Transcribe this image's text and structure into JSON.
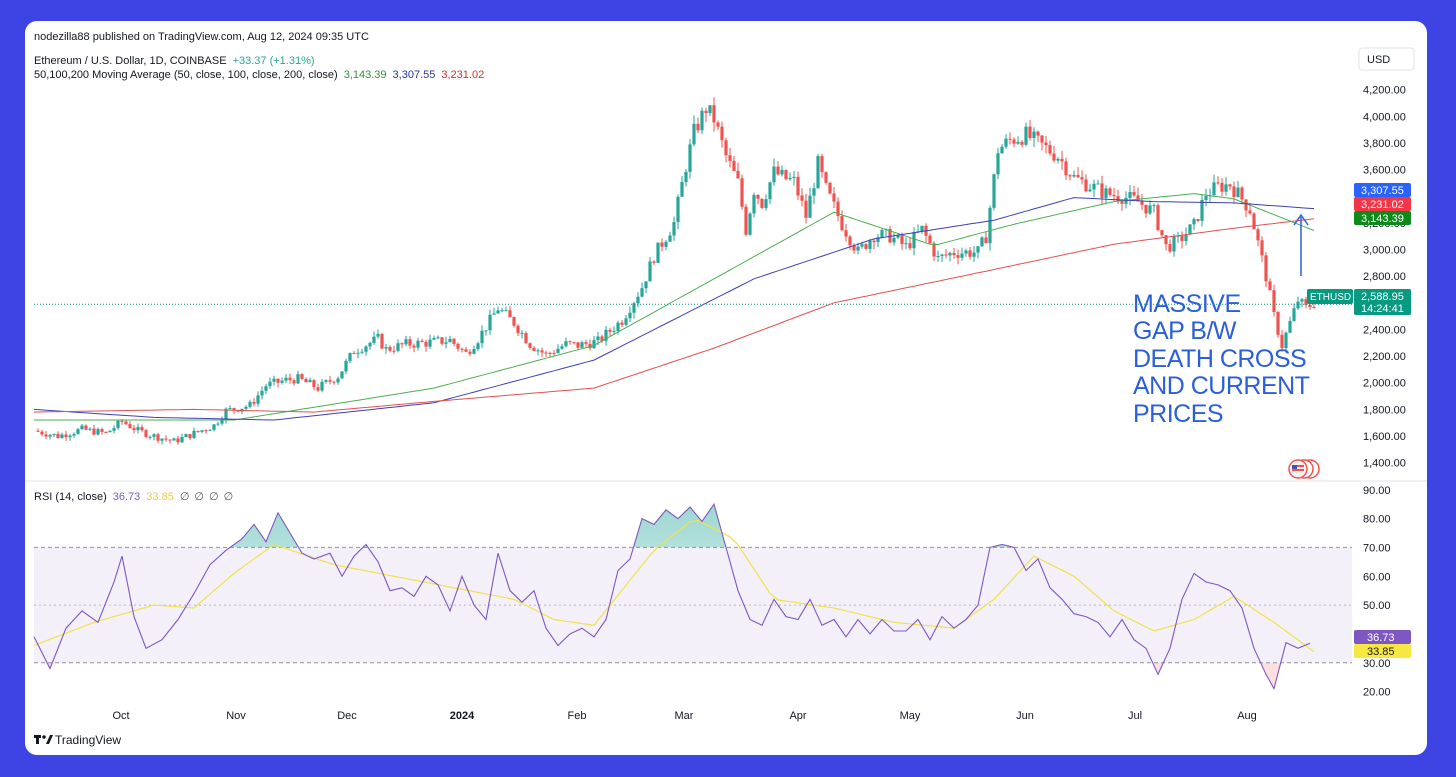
{
  "header": {
    "publisher": "nodezilla88 published on TradingView.com, Aug 12, 2024 09:35 UTC",
    "symbol": "Ethereum / U.S. Dollar, 1D, COINBASE",
    "change": "+33.37 (+1.31%)",
    "ma_label": "50,100,200 Moving Average (50, close, 100, close, 200, close)",
    "ma50_value": "3,143.39",
    "ma100_value": "3,307.55",
    "ma200_value": "3,231.02",
    "currency_button": "USD"
  },
  "annotation": {
    "lines": [
      "MASSIVE",
      "GAP B/W",
      "DEATH CROSS",
      "AND CURRENT",
      "PRICES"
    ]
  },
  "price_tags": {
    "ma100": "3,307.55",
    "ma200": "3,231.02",
    "ma50": "3,143.39",
    "symbol_tag": "ETHUSD",
    "last_price": "2,588.95",
    "countdown": "14:24:41"
  },
  "rsi_panel": {
    "label": "RSI (14, close)",
    "rsi_value": "36.73",
    "ma_value": "33.85",
    "extras": [
      "∅",
      "∅",
      "∅",
      "∅"
    ],
    "tag_rsi": "36.73",
    "tag_ma": "33.85"
  },
  "footer": {
    "brand": "TradingView"
  },
  "colors": {
    "up": "#26a69a",
    "down": "#ef5350",
    "ma50": "#4caf50",
    "ma100": "#3f3fb5",
    "ma200": "#e05252",
    "rsi": "#7e57c2",
    "rsi_ma": "#f2e14a",
    "annotation": "#2b5fd9",
    "background": "#3d44e3"
  },
  "chart_data": [
    {
      "type": "candlestick",
      "title": "Ethereum / U.S. Dollar, 1D, COINBASE",
      "y_ticks": [
        1400,
        1600,
        1800,
        2000,
        2200,
        2400,
        2600,
        2800,
        3000,
        3200,
        3400,
        3600,
        3800,
        4000,
        4200
      ],
      "y_tick_labels": [
        "1,400.00",
        "1,600.00",
        "1,800.00",
        "2,000.00",
        "2,200.00",
        "2,400.00",
        "2,600.00",
        "2,800.00",
        "3,000.00",
        "3,200.00",
        "3,400.00",
        "3,600.00",
        "3,800.00",
        "4,000.00",
        "4,200.00"
      ],
      "x_labels": [
        "Oct",
        "Nov",
        "Dec",
        "2024",
        "Feb",
        "Mar",
        "Apr",
        "May",
        "Jun",
        "Jul",
        "Aug"
      ],
      "ylim": [
        1300,
        4250
      ],
      "last_price": 2588.95,
      "close_path": [
        [
          0,
          1640
        ],
        [
          6,
          1600
        ],
        [
          12,
          1650
        ],
        [
          18,
          1620
        ],
        [
          22,
          1710
        ],
        [
          26,
          1640
        ],
        [
          30,
          1600
        ],
        [
          35,
          1560
        ],
        [
          40,
          1620
        ],
        [
          45,
          1680
        ],
        [
          48,
          1790
        ],
        [
          54,
          1830
        ],
        [
          58,
          1980
        ],
        [
          63,
          2020
        ],
        [
          66,
          2030
        ],
        [
          71,
          1960
        ],
        [
          76,
          2050
        ],
        [
          80,
          2240
        ],
        [
          86,
          2330
        ],
        [
          88,
          2250
        ],
        [
          93,
          2290
        ],
        [
          98,
          2300
        ],
        [
          104,
          2320
        ],
        [
          108,
          2220
        ],
        [
          111,
          2330
        ],
        [
          116,
          2560
        ],
        [
          120,
          2450
        ],
        [
          124,
          2290
        ],
        [
          128,
          2210
        ],
        [
          133,
          2290
        ],
        [
          136,
          2280
        ],
        [
          141,
          2310
        ],
        [
          147,
          2470
        ],
        [
          152,
          2720
        ],
        [
          155,
          2950
        ],
        [
          160,
          3200
        ],
        [
          163,
          3630
        ],
        [
          165,
          3880
        ],
        [
          168,
          4060
        ],
        [
          170,
          3980
        ],
        [
          173,
          3700
        ],
        [
          176,
          3500
        ],
        [
          178,
          3150
        ],
        [
          180,
          3450
        ],
        [
          182,
          3350
        ],
        [
          185,
          3580
        ],
        [
          188,
          3530
        ],
        [
          190,
          3510
        ],
        [
          193,
          3250
        ],
        [
          196,
          3640
        ],
        [
          198,
          3450
        ],
        [
          202,
          3190
        ],
        [
          206,
          2980
        ],
        [
          210,
          3110
        ],
        [
          214,
          3100
        ],
        [
          218,
          3020
        ],
        [
          222,
          3150
        ],
        [
          226,
          2930
        ],
        [
          230,
          2980
        ],
        [
          236,
          2980
        ],
        [
          238,
          3100
        ],
        [
          241,
          3750
        ],
        [
          244,
          3820
        ],
        [
          248,
          3860
        ],
        [
          252,
          3780
        ],
        [
          256,
          3700
        ],
        [
          260,
          3540
        ],
        [
          264,
          3480
        ],
        [
          268,
          3420
        ],
        [
          272,
          3400
        ],
        [
          276,
          3360
        ],
        [
          280,
          3280
        ],
        [
          283,
          3020
        ],
        [
          286,
          3060
        ],
        [
          290,
          3180
        ],
        [
          293,
          3420
        ],
        [
          296,
          3470
        ],
        [
          299,
          3490
        ],
        [
          302,
          3380
        ],
        [
          304,
          3300
        ],
        [
          306,
          3050
        ],
        [
          308,
          2800
        ],
        [
          310,
          2500
        ],
        [
          312,
          2280
        ],
        [
          314,
          2450
        ],
        [
          316,
          2620
        ],
        [
          318,
          2560
        ],
        [
          320,
          2600
        ]
      ],
      "series": [
        {
          "name": "50",
          "last": 3143.39,
          "values": [
            [
              0,
              1720
            ],
            [
              50,
              1720
            ],
            [
              100,
              1960
            ],
            [
              140,
              2280
            ],
            [
              170,
              2780
            ],
            [
              200,
              3280
            ],
            [
              225,
              3030
            ],
            [
              245,
              3190
            ],
            [
              270,
              3360
            ],
            [
              290,
              3420
            ],
            [
              300,
              3380
            ],
            [
              320,
              3143
            ]
          ]
        },
        {
          "name": "100",
          "last": 3307.55,
          "values": [
            [
              0,
              1800
            ],
            [
              30,
              1740
            ],
            [
              60,
              1720
            ],
            [
              100,
              1850
            ],
            [
              140,
              2170
            ],
            [
              180,
              2780
            ],
            [
              210,
              3080
            ],
            [
              240,
              3220
            ],
            [
              260,
              3390
            ],
            [
              280,
              3360
            ],
            [
              300,
              3350
            ],
            [
              320,
              3307
            ]
          ]
        },
        {
          "name": "200",
          "last": 3231.02,
          "values": [
            [
              0,
              1780
            ],
            [
              40,
              1800
            ],
            [
              70,
              1780
            ],
            [
              100,
              1860
            ],
            [
              140,
              1960
            ],
            [
              170,
              2260
            ],
            [
              200,
              2600
            ],
            [
              240,
              2850
            ],
            [
              270,
              3040
            ],
            [
              300,
              3160
            ],
            [
              320,
              3231
            ]
          ]
        }
      ]
    },
    {
      "type": "line",
      "title": "RSI (14, close)",
      "y_ticks": [
        20,
        30,
        40,
        50,
        60,
        70,
        80,
        90
      ],
      "y_tick_labels": [
        "20.00",
        "30.00",
        "40.00",
        "50.00",
        "60.00",
        "70.00",
        "80.00",
        "90.00"
      ],
      "ylim": [
        15,
        92
      ],
      "overbought": 70,
      "middle": 50,
      "oversold": 30,
      "series": [
        {
          "name": "RSI",
          "last": 36.73,
          "values": [
            [
              0,
              39
            ],
            [
              4,
              28
            ],
            [
              8,
              42
            ],
            [
              12,
              48
            ],
            [
              16,
              44
            ],
            [
              20,
              58
            ],
            [
              22,
              67
            ],
            [
              25,
              46
            ],
            [
              28,
              35
            ],
            [
              32,
              38
            ],
            [
              36,
              45
            ],
            [
              40,
              54
            ],
            [
              44,
              64
            ],
            [
              48,
              69
            ],
            [
              52,
              73
            ],
            [
              55,
              78
            ],
            [
              58,
              72
            ],
            [
              61,
              82
            ],
            [
              64,
              75
            ],
            [
              67,
              68
            ],
            [
              70,
              66
            ],
            [
              74,
              68
            ],
            [
              77,
              60
            ],
            [
              80,
              67
            ],
            [
              83,
              71
            ],
            [
              86,
              65
            ],
            [
              89,
              55
            ],
            [
              92,
              56
            ],
            [
              95,
              53
            ],
            [
              98,
              60
            ],
            [
              101,
              57
            ],
            [
              104,
              48
            ],
            [
              107,
              60
            ],
            [
              110,
              50
            ],
            [
              113,
              45
            ],
            [
              116,
              68
            ],
            [
              119,
              55
            ],
            [
              122,
              51
            ],
            [
              125,
              55
            ],
            [
              128,
              42
            ],
            [
              131,
              36
            ],
            [
              134,
              40
            ],
            [
              137,
              42
            ],
            [
              140,
              39
            ],
            [
              143,
              45
            ],
            [
              146,
              62
            ],
            [
              149,
              66
            ],
            [
              152,
              80
            ],
            [
              155,
              78
            ],
            [
              158,
              83
            ],
            [
              161,
              80
            ],
            [
              164,
              84
            ],
            [
              167,
              79
            ],
            [
              170,
              85
            ],
            [
              173,
              70
            ],
            [
              176,
              55
            ],
            [
              179,
              45
            ],
            [
              182,
              43
            ],
            [
              185,
              52
            ],
            [
              188,
              46
            ],
            [
              191,
              45
            ],
            [
              194,
              52
            ],
            [
              197,
              43
            ],
            [
              200,
              45
            ],
            [
              203,
              39
            ],
            [
              206,
              45
            ],
            [
              209,
              40
            ],
            [
              212,
              45
            ],
            [
              215,
              41
            ],
            [
              218,
              41
            ],
            [
              221,
              45
            ],
            [
              224,
              38
            ],
            [
              227,
              46
            ],
            [
              230,
              42
            ],
            [
              233,
              45
            ],
            [
              236,
              50
            ],
            [
              239,
              70
            ],
            [
              242,
              71
            ],
            [
              245,
              70
            ],
            [
              248,
              62
            ],
            [
              251,
              66
            ],
            [
              254,
              56
            ],
            [
              257,
              52
            ],
            [
              260,
              47
            ],
            [
              263,
              46
            ],
            [
              266,
              44
            ],
            [
              269,
              39
            ],
            [
              272,
              45
            ],
            [
              275,
              38
            ],
            [
              278,
              35
            ],
            [
              281,
              26
            ],
            [
              284,
              35
            ],
            [
              287,
              52
            ],
            [
              290,
              61
            ],
            [
              293,
              58
            ],
            [
              296,
              57
            ],
            [
              299,
              55
            ],
            [
              302,
              49
            ],
            [
              305,
              35
            ],
            [
              308,
              26
            ],
            [
              310,
              21
            ],
            [
              313,
              37
            ],
            [
              316,
              35
            ],
            [
              319,
              36.73
            ]
          ]
        },
        {
          "name": "RSI-based MA",
          "last": 33.85,
          "values": [
            [
              0,
              36
            ],
            [
              15,
              44
            ],
            [
              30,
              50
            ],
            [
              40,
              49
            ],
            [
              50,
              61
            ],
            [
              60,
              71
            ],
            [
              75,
              64
            ],
            [
              90,
              60
            ],
            [
              105,
              56
            ],
            [
              120,
              52
            ],
            [
              130,
              45
            ],
            [
              140,
              43
            ],
            [
              155,
              69
            ],
            [
              165,
              80
            ],
            [
              175,
              73
            ],
            [
              185,
              52
            ],
            [
              200,
              49
            ],
            [
              215,
              44
            ],
            [
              230,
              42
            ],
            [
              240,
              52
            ],
            [
              250,
              67
            ],
            [
              260,
              60
            ],
            [
              270,
              48
            ],
            [
              280,
              41
            ],
            [
              290,
              45
            ],
            [
              300,
              53
            ],
            [
              310,
              44
            ],
            [
              320,
              33.85
            ]
          ]
        }
      ]
    }
  ]
}
